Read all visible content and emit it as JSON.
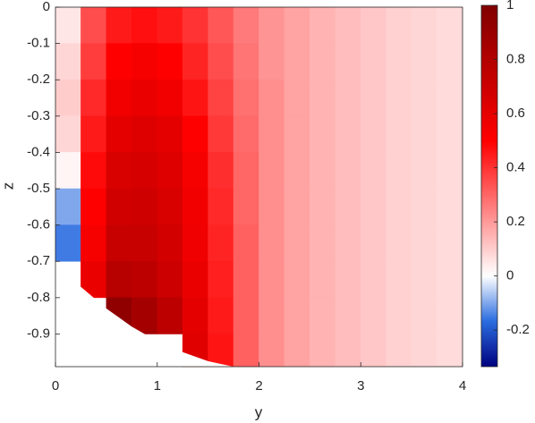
{
  "chart_data": {
    "type": "heatmap",
    "x_label": "y",
    "y_label": "z",
    "x_edges": [
      0,
      0.25,
      0.5,
      0.75,
      1,
      1.25,
      1.5,
      1.75,
      2,
      2.25,
      2.5,
      2.75,
      3,
      3.25,
      3.5,
      3.75,
      4
    ],
    "y_edges": [
      0,
      -0.1,
      -0.2,
      -0.3,
      -0.4,
      -0.5,
      -0.6,
      -0.7,
      -0.8,
      -0.9,
      -0.99
    ],
    "values": [
      [
        0.05,
        0.35,
        0.45,
        0.47,
        0.45,
        0.4,
        0.33,
        0.26,
        0.21,
        0.18,
        0.15,
        0.13,
        0.11,
        0.09,
        0.08,
        0.07
      ],
      [
        0.08,
        0.38,
        0.5,
        0.53,
        0.5,
        0.43,
        0.35,
        0.27,
        0.21,
        0.18,
        0.15,
        0.13,
        0.11,
        0.09,
        0.08,
        0.07
      ],
      [
        0.1,
        0.42,
        0.55,
        0.58,
        0.55,
        0.46,
        0.37,
        0.28,
        0.22,
        0.18,
        0.15,
        0.13,
        0.11,
        0.09,
        0.08,
        0.07
      ],
      [
        0.08,
        0.45,
        0.6,
        0.63,
        0.6,
        0.5,
        0.39,
        0.29,
        0.22,
        0.18,
        0.15,
        0.13,
        0.11,
        0.09,
        0.08,
        0.07
      ],
      [
        0.02,
        0.48,
        0.65,
        0.66,
        0.63,
        0.53,
        0.41,
        0.3,
        0.22,
        0.18,
        0.15,
        0.13,
        0.11,
        0.09,
        0.08,
        0.07
      ],
      [
        -0.1,
        0.5,
        0.68,
        0.69,
        0.65,
        0.55,
        0.42,
        0.3,
        0.22,
        0.18,
        0.15,
        0.13,
        0.11,
        0.09,
        0.08,
        0.07
      ],
      [
        -0.15,
        0.53,
        0.72,
        0.72,
        0.67,
        0.56,
        0.43,
        0.31,
        0.22,
        0.18,
        0.15,
        0.13,
        0.11,
        0.09,
        0.08,
        0.07
      ],
      [
        null,
        0.58,
        0.78,
        0.76,
        0.7,
        0.58,
        0.44,
        0.31,
        0.22,
        0.18,
        0.15,
        0.13,
        0.11,
        0.09,
        0.08,
        0.07
      ],
      [
        null,
        null,
        0.93,
        0.85,
        0.76,
        0.6,
        0.45,
        0.31,
        0.22,
        0.18,
        0.15,
        0.13,
        0.11,
        0.09,
        0.08,
        0.07
      ],
      [
        null,
        null,
        null,
        null,
        null,
        0.62,
        0.46,
        0.31,
        0.22,
        0.18,
        0.15,
        0.13,
        0.11,
        0.09,
        0.08,
        0.07
      ]
    ],
    "xlim": [
      0,
      4
    ],
    "xticks": [
      0,
      1,
      2,
      3,
      4
    ],
    "ylim": [
      -0.99,
      0
    ],
    "yticks": [
      0,
      -0.1,
      -0.2,
      -0.3,
      -0.4,
      -0.5,
      -0.6,
      -0.7,
      -0.8,
      -0.9
    ],
    "clim": [
      -0.335,
      1
    ],
    "cticks": [
      -0.2,
      0,
      0.2,
      0.4,
      0.6,
      0.8,
      1
    ],
    "colormap_negative": [
      "#00007f",
      "#2a6ce0",
      "#ffffff"
    ],
    "colormap_positive": [
      "#ffffff",
      "#ff0000",
      "#7f0000"
    ]
  }
}
